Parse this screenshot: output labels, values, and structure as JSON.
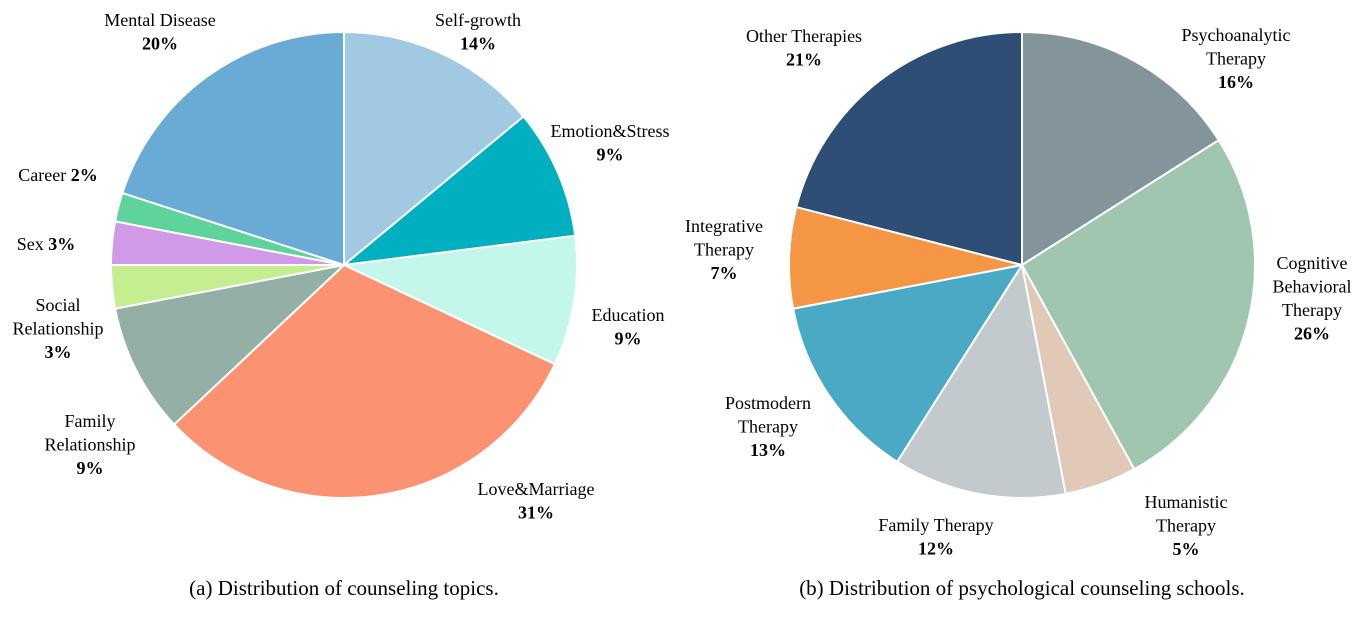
{
  "chart_data": [
    {
      "type": "pie",
      "caption": "(a) Distribution of counseling topics.",
      "start": "top",
      "direction": "clockwise",
      "categories": [
        "Self-growth",
        "Emotion&Stress",
        "Education",
        "Love&Marriage",
        "Family Relationship",
        "Social Relationship",
        "Sex",
        "Career",
        "Mental Disease"
      ],
      "values": [
        14,
        9,
        9,
        31,
        9,
        3,
        3,
        2,
        20
      ],
      "value_labels": [
        "14%",
        "9%",
        "9%",
        "31%",
        "9%",
        "3%",
        "3%",
        "2%",
        "20%"
      ],
      "colors": [
        "#a1c9e1",
        "#00b0c0",
        "#c4f7ec",
        "#fb9373",
        "#94afa6",
        "#c5ee90",
        "#d09ae8",
        "#5ed39c",
        "#6aabd6"
      ]
    },
    {
      "type": "pie",
      "caption": "(b) Distribution of psychological counseling schools.",
      "start": "top",
      "direction": "clockwise",
      "categories": [
        "Psychoanalytic Therapy",
        "Cognitive Behavioral Therapy",
        "Humanistic Therapy",
        "Family Therapy",
        "Postmodern Therapy",
        "Integrative Therapy",
        "Other Therapies"
      ],
      "values": [
        16,
        26,
        5,
        12,
        13,
        7,
        21
      ],
      "value_labels": [
        "16%",
        "26%",
        "5%",
        "12%",
        "13%",
        "7%",
        "21%"
      ],
      "colors": [
        "#83949b",
        "#a0c6b0",
        "#e0c9b7",
        "#c3cacd",
        "#4aaac5",
        "#f59645",
        "#2e4e76"
      ]
    }
  ]
}
